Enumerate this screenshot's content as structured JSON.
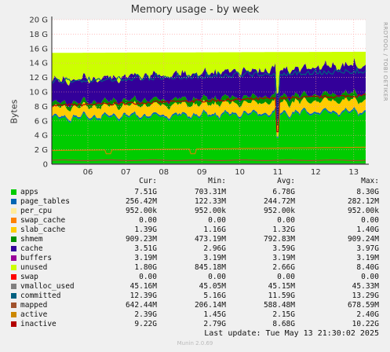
{
  "chart_data": {
    "type": "area",
    "title": "Memory usage - by week",
    "ylabel": "Bytes",
    "side_text": "RRDTOOL / TOBI OETIKER",
    "yticks": [
      "0",
      "2 G",
      "4 G",
      "6 G",
      "8 G",
      "10 G",
      "12 G",
      "14 G",
      "16 G",
      "18 G",
      "20 G"
    ],
    "ylim": [
      0,
      20
    ],
    "xticks": [
      "06",
      "07",
      "08",
      "09",
      "10",
      "11",
      "12",
      "13"
    ],
    "grid": true,
    "stack_order": [
      "apps",
      "page_tables",
      "per_cpu",
      "swap_cache",
      "slab_cache",
      "shmem",
      "cache",
      "buffers",
      "unused",
      "swap"
    ],
    "lines": [
      "vmalloc_used",
      "committed",
      "mapped",
      "active",
      "inactive"
    ]
  },
  "legend": {
    "headers": {
      "cur": "Cur:",
      "min": "Min:",
      "avg": "Avg:",
      "max": "Max:"
    },
    "rows": [
      {
        "name": "apps",
        "color": "#00cc00",
        "cur": "7.51G",
        "min": "703.31M",
        "avg": "6.78G",
        "max": "8.30G"
      },
      {
        "name": "page_tables",
        "color": "#0066b3",
        "cur": "256.42M",
        "min": "122.33M",
        "avg": "244.72M",
        "max": "282.12M"
      },
      {
        "name": "per_cpu",
        "color": "#ffeb99",
        "cur": "952.00k",
        "min": "952.00k",
        "avg": "952.00k",
        "max": "952.00k"
      },
      {
        "name": "swap_cache",
        "color": "#ff8000",
        "cur": "0.00",
        "min": "0.00",
        "avg": "0.00",
        "max": "0.00"
      },
      {
        "name": "slab_cache",
        "color": "#ffcc00",
        "cur": "1.39G",
        "min": "1.16G",
        "avg": "1.32G",
        "max": "1.40G"
      },
      {
        "name": "shmem",
        "color": "#008f00",
        "cur": "909.23M",
        "min": "473.19M",
        "avg": "792.83M",
        "max": "909.24M"
      },
      {
        "name": "cache",
        "color": "#330099",
        "cur": "3.51G",
        "min": "2.96G",
        "avg": "3.59G",
        "max": "3.97G"
      },
      {
        "name": "buffers",
        "color": "#990099",
        "cur": "3.19M",
        "min": "3.19M",
        "avg": "3.19M",
        "max": "3.19M"
      },
      {
        "name": "unused",
        "color": "#ccff00",
        "cur": "1.80G",
        "min": "845.18M",
        "avg": "2.66G",
        "max": "8.40G"
      },
      {
        "name": "swap",
        "color": "#ff0000",
        "cur": "0.00",
        "min": "0.00",
        "avg": "0.00",
        "max": "0.00"
      },
      {
        "name": "vmalloc_used",
        "color": "#808080",
        "cur": "45.16M",
        "min": "45.05M",
        "avg": "45.15M",
        "max": "45.33M"
      },
      {
        "name": "committed",
        "color": "#006080",
        "cur": "12.39G",
        "min": "5.16G",
        "avg": "11.59G",
        "max": "13.29G"
      },
      {
        "name": "mapped",
        "color": "#a0522d",
        "cur": "642.44M",
        "min": "206.14M",
        "avg": "588.48M",
        "max": "678.59M"
      },
      {
        "name": "active",
        "color": "#cc8800",
        "cur": "2.39G",
        "min": "1.45G",
        "avg": "2.15G",
        "max": "2.40G"
      },
      {
        "name": "inactive",
        "color": "#b30000",
        "cur": "9.22G",
        "min": "2.79G",
        "avg": "8.68G",
        "max": "10.22G"
      }
    ]
  },
  "footer": {
    "last_update": "Last update: Tue May 13 21:30:02 2025",
    "munin": "Munin 2.0.69"
  }
}
